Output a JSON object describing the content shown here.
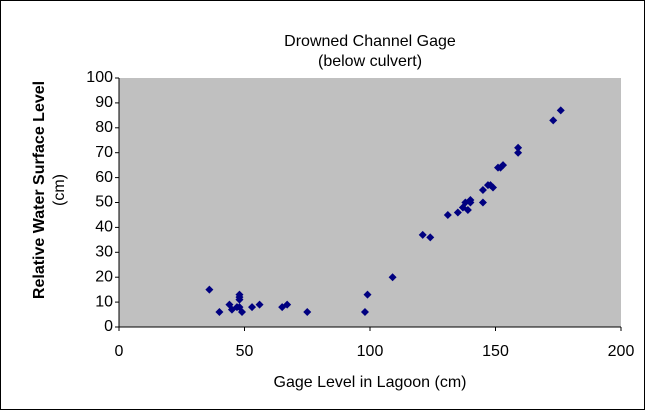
{
  "chart_data": {
    "type": "scatter",
    "title": "Drowned Channel Gage",
    "subtitle": "(below culvert)",
    "xlabel": "Gage Level in Lagoon (cm)",
    "ylabel": "Relative Water Surface Level",
    "ylabel_unit": "(cm)",
    "color": "#000080",
    "plot_background": "#c0c0c0",
    "x": [
      36,
      40,
      44,
      45,
      47,
      48,
      48,
      48,
      48,
      49,
      53,
      56,
      65,
      67,
      75,
      98,
      99,
      109,
      121,
      124,
      131,
      135,
      137,
      138,
      139,
      140,
      140,
      145,
      145,
      147,
      148,
      149,
      151,
      152,
      153,
      159,
      159,
      173,
      176
    ],
    "values": [
      15,
      6,
      9,
      7,
      8,
      13,
      12,
      11,
      8,
      6,
      8,
      9,
      8,
      9,
      6,
      6,
      13,
      20,
      37,
      36,
      45,
      46,
      48,
      50,
      47,
      50,
      51,
      50,
      55,
      57,
      57,
      56,
      64,
      64,
      65,
      70,
      72,
      83,
      87
    ],
    "xlim": [
      0,
      200
    ],
    "xticks": [
      0,
      50,
      100,
      150,
      200
    ],
    "ylim": [
      0,
      100
    ],
    "yticks": [
      0,
      10,
      20,
      30,
      40,
      50,
      60,
      70,
      80,
      90,
      100
    ],
    "grid": false
  }
}
